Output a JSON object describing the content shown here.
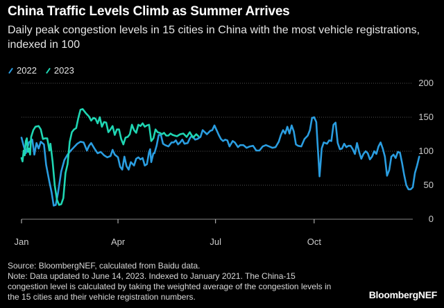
{
  "title": "China Traffic Levels Climb as Summer Arrives",
  "subtitle": "Daily peak congestion levels in 15 cities in China with the most vehicle registrations, indexed in 100",
  "footer": {
    "source": "Source: BloombergNEF, calculated from Baidu data.",
    "note": "Note: Data updated to June 14, 2023. Indexed to January 2021. The China-15 congestion level is calculated by taking the weighted average of the congestion levels in the 15 cities and their vehicle registration numbers."
  },
  "brand": "BloombergNEF",
  "colors": {
    "s2022": "#2a9de0",
    "s2023": "#1fd6b3",
    "grid": "#555555",
    "axis": "#888888"
  },
  "chart_data": {
    "type": "line",
    "ylim": [
      0,
      200
    ],
    "yticks": [
      0,
      50,
      100,
      150,
      200
    ],
    "y_tick_labels": [
      "0",
      "50",
      "100",
      "150",
      "200"
    ],
    "xlim": [
      1,
      366
    ],
    "xticks": [
      1,
      91,
      182,
      274
    ],
    "x_tick_labels": [
      "Jan",
      "Apr",
      "Jul",
      "Oct"
    ],
    "grid": true,
    "legend": "top-left",
    "series": [
      {
        "name": "2022",
        "color": "#2a9de0",
        "points": [
          [
            1,
            120
          ],
          [
            3,
            108
          ],
          [
            5,
            97
          ],
          [
            8,
            113
          ],
          [
            11,
            117
          ],
          [
            13,
            95
          ],
          [
            15,
            112
          ],
          [
            17,
            104
          ],
          [
            19,
            114
          ],
          [
            22,
            110
          ],
          [
            24,
            80
          ],
          [
            27,
            55
          ],
          [
            29,
            40
          ],
          [
            31,
            20
          ],
          [
            33,
            21
          ],
          [
            35,
            38
          ],
          [
            38,
            70
          ],
          [
            41,
            87
          ],
          [
            44,
            95
          ],
          [
            47,
            101
          ],
          [
            50,
            106
          ],
          [
            53,
            111
          ],
          [
            56,
            114
          ],
          [
            59,
            113
          ],
          [
            62,
            101
          ],
          [
            64,
            108
          ],
          [
            66,
            112
          ],
          [
            69,
            104
          ],
          [
            72,
            97
          ],
          [
            75,
            99
          ],
          [
            78,
            94
          ],
          [
            81,
            91
          ],
          [
            84,
            93
          ],
          [
            86,
            102
          ],
          [
            88,
            95
          ],
          [
            91,
            91
          ],
          [
            93,
            77
          ],
          [
            95,
            73
          ],
          [
            97,
            92
          ],
          [
            99,
            78
          ],
          [
            101,
            73
          ],
          [
            103,
            84
          ],
          [
            106,
            79
          ],
          [
            108,
            89
          ],
          [
            110,
            91
          ],
          [
            112,
            88
          ],
          [
            114,
            90
          ],
          [
            116,
            79
          ],
          [
            118,
            81
          ],
          [
            120,
            99
          ],
          [
            121,
            103
          ],
          [
            122,
            84
          ],
          [
            124,
            97
          ],
          [
            125,
            97
          ],
          [
            127,
            108
          ],
          [
            129,
            124
          ],
          [
            131,
            124
          ],
          [
            133,
            111
          ],
          [
            135,
            109
          ],
          [
            138,
            107
          ],
          [
            141,
            113
          ],
          [
            143,
            113
          ],
          [
            145,
            116
          ],
          [
            147,
            110
          ],
          [
            149,
            113
          ],
          [
            151,
            117
          ],
          [
            153,
            111
          ],
          [
            156,
            112
          ],
          [
            158,
            119
          ],
          [
            160,
            123
          ],
          [
            163,
            117
          ],
          [
            165,
            118
          ],
          [
            168,
            121
          ],
          [
            170,
            131
          ],
          [
            172,
            128
          ],
          [
            174,
            125
          ],
          [
            177,
            130
          ],
          [
            179,
            131
          ],
          [
            181,
            138
          ],
          [
            183,
            131
          ],
          [
            185,
            124
          ],
          [
            187,
            118
          ],
          [
            189,
            115
          ],
          [
            191,
            117
          ],
          [
            193,
            116
          ],
          [
            195,
            107
          ],
          [
            198,
            115
          ],
          [
            200,
            113
          ],
          [
            203,
            106
          ],
          [
            205,
            109
          ],
          [
            208,
            109
          ],
          [
            211,
            105
          ],
          [
            214,
            107
          ],
          [
            217,
            108
          ],
          [
            220,
            101
          ],
          [
            223,
            101
          ],
          [
            226,
            107
          ],
          [
            229,
            109
          ],
          [
            232,
            107
          ],
          [
            235,
            105
          ],
          [
            238,
            106
          ],
          [
            241,
            114
          ],
          [
            243,
            124
          ],
          [
            245,
            131
          ],
          [
            247,
            126
          ],
          [
            249,
            136
          ],
          [
            251,
            126
          ],
          [
            253,
            138
          ],
          [
            255,
            129
          ],
          [
            257,
            110
          ],
          [
            259,
            108
          ],
          [
            262,
            107
          ],
          [
            265,
            118
          ],
          [
            268,
            123
          ],
          [
            270,
            131
          ],
          [
            272,
            149
          ],
          [
            274,
            150
          ],
          [
            276,
            143
          ],
          [
            277,
            115
          ],
          [
            278,
            90
          ],
          [
            279,
            63
          ],
          [
            280,
            82
          ],
          [
            281,
            104
          ],
          [
            283,
            113
          ],
          [
            286,
            111
          ],
          [
            288,
            116
          ],
          [
            290,
            115
          ],
          [
            292,
            139
          ],
          [
            294,
            142
          ],
          [
            296,
            112
          ],
          [
            298,
            103
          ],
          [
            300,
            104
          ],
          [
            302,
            111
          ],
          [
            304,
            106
          ],
          [
            306,
            108
          ],
          [
            308,
            108
          ],
          [
            310,
            103
          ],
          [
            312,
            96
          ],
          [
            314,
            112
          ],
          [
            316,
            99
          ],
          [
            318,
            89
          ],
          [
            320,
            96
          ],
          [
            322,
            100
          ],
          [
            324,
            97
          ],
          [
            326,
            88
          ],
          [
            328,
            92
          ],
          [
            330,
            100
          ],
          [
            332,
            96
          ],
          [
            334,
            107
          ],
          [
            336,
            113
          ],
          [
            338,
            104
          ],
          [
            340,
            92
          ],
          [
            342,
            64
          ],
          [
            344,
            72
          ],
          [
            346,
            92
          ],
          [
            348,
            95
          ],
          [
            350,
            90
          ],
          [
            352,
            99
          ],
          [
            354,
            98
          ],
          [
            356,
            83
          ],
          [
            358,
            65
          ],
          [
            360,
            50
          ],
          [
            362,
            44
          ],
          [
            364,
            44
          ],
          [
            366,
            47
          ],
          [
            368,
            68
          ],
          [
            370,
            79
          ],
          [
            372,
            92
          ]
        ]
      },
      {
        "name": "2023",
        "color": "#1fd6b3",
        "points": [
          [
            1,
            90
          ],
          [
            2,
            85
          ],
          [
            3,
            101
          ],
          [
            4,
            94
          ],
          [
            5,
            115
          ],
          [
            6,
            119
          ],
          [
            7,
            99
          ],
          [
            8,
            104
          ],
          [
            9,
            95
          ],
          [
            10,
            121
          ],
          [
            12,
            131
          ],
          [
            14,
            136
          ],
          [
            17,
            137
          ],
          [
            19,
            132
          ],
          [
            21,
            118
          ],
          [
            23,
            119
          ],
          [
            25,
            119
          ],
          [
            27,
            101
          ],
          [
            28,
            111
          ],
          [
            30,
            85
          ],
          [
            32,
            50
          ],
          [
            34,
            29
          ],
          [
            36,
            21
          ],
          [
            38,
            22
          ],
          [
            40,
            31
          ],
          [
            42,
            68
          ],
          [
            44,
            81
          ],
          [
            46,
            114
          ],
          [
            48,
            128
          ],
          [
            50,
            132
          ],
          [
            52,
            134
          ],
          [
            54,
            149
          ],
          [
            56,
            161
          ],
          [
            58,
            162
          ],
          [
            61,
            156
          ],
          [
            64,
            151
          ],
          [
            66,
            145
          ],
          [
            68,
            149
          ],
          [
            70,
            148
          ],
          [
            72,
            141
          ],
          [
            74,
            150
          ],
          [
            76,
            136
          ],
          [
            78,
            143
          ],
          [
            80,
            142
          ],
          [
            82,
            128
          ],
          [
            84,
            132
          ],
          [
            86,
            137
          ],
          [
            88,
            124
          ],
          [
            90,
            132
          ],
          [
            92,
            132
          ],
          [
            94,
            118
          ],
          [
            96,
            110
          ],
          [
            98,
            120
          ],
          [
            100,
            121
          ],
          [
            102,
            125
          ],
          [
            104,
            139
          ],
          [
            106,
            131
          ],
          [
            108,
            127
          ],
          [
            110,
            139
          ],
          [
            112,
            137
          ],
          [
            114,
            141
          ],
          [
            116,
            136
          ],
          [
            118,
            138
          ],
          [
            120,
            139
          ],
          [
            122,
            115
          ],
          [
            124,
            119
          ],
          [
            126,
            132
          ],
          [
            128,
            128
          ],
          [
            130,
            127
          ],
          [
            132,
            125
          ],
          [
            134,
            127
          ],
          [
            136,
            123
          ],
          [
            138,
            123
          ],
          [
            140,
            126
          ],
          [
            142,
            124
          ],
          [
            144,
            123
          ],
          [
            146,
            122
          ],
          [
            149,
            125
          ],
          [
            152,
            126
          ],
          [
            155,
            121
          ],
          [
            158,
            128
          ],
          [
            161,
            120
          ],
          [
            164,
            125
          ],
          [
            166,
            122
          ]
        ]
      }
    ]
  }
}
